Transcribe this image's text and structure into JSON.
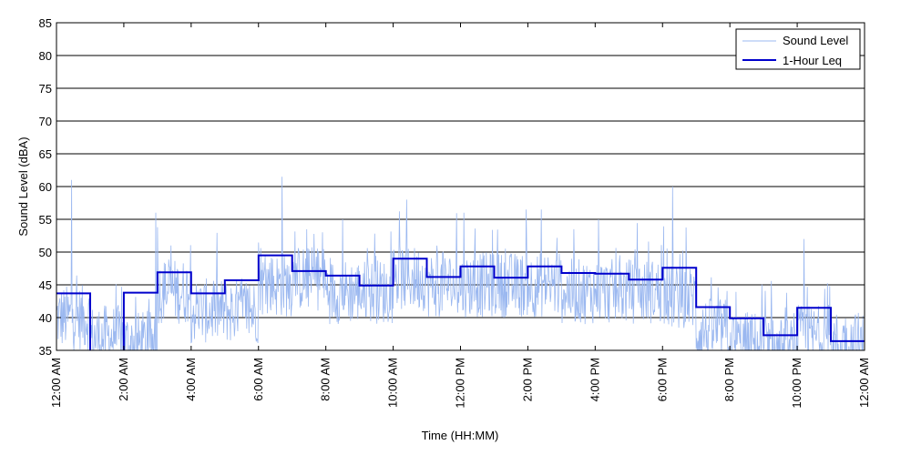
{
  "chart_data": {
    "type": "line",
    "xlabel": "Time (HH:MM)",
    "ylabel": "Sound Level (dBA)",
    "ylim": [
      35,
      85
    ],
    "xlim_hours": [
      0,
      24
    ],
    "y_ticks": [
      35,
      40,
      45,
      50,
      55,
      60,
      65,
      70,
      75,
      80,
      85
    ],
    "x_ticks": [
      {
        "hour": 0,
        "label": "12:00 AM"
      },
      {
        "hour": 2,
        "label": "2:00 AM"
      },
      {
        "hour": 4,
        "label": "4:00 AM"
      },
      {
        "hour": 6,
        "label": "6:00 AM"
      },
      {
        "hour": 8,
        "label": "8:00 AM"
      },
      {
        "hour": 10,
        "label": "10:00 AM"
      },
      {
        "hour": 12,
        "label": "12:00 PM"
      },
      {
        "hour": 14,
        "label": "2:00 PM"
      },
      {
        "hour": 16,
        "label": "4:00 PM"
      },
      {
        "hour": 18,
        "label": "6:00 PM"
      },
      {
        "hour": 20,
        "label": "8:00 PM"
      },
      {
        "hour": 22,
        "label": "10:00 PM"
      },
      {
        "hour": 24,
        "label": "12:00 AM"
      }
    ],
    "grid": "horizontal",
    "legend_position": "top-right",
    "series": [
      {
        "name": "Sound Level",
        "color": "#9bb8f0",
        "style": "thin-line",
        "hourly_means": [
          40,
          37,
          36,
          44,
          41,
          41,
          45,
          46,
          44,
          44,
          46,
          45,
          45,
          45,
          45,
          44,
          44,
          44,
          43,
          38,
          36,
          35,
          37,
          36
        ],
        "peaks": [
          {
            "hour": 0.45,
            "value": 61
          },
          {
            "hour": 2.95,
            "value": 56
          },
          {
            "hour": 3.4,
            "value": 51
          },
          {
            "hour": 6.7,
            "value": 61.5
          },
          {
            "hour": 8.5,
            "value": 55
          },
          {
            "hour": 10.4,
            "value": 58
          },
          {
            "hour": 12.1,
            "value": 56
          },
          {
            "hour": 14.4,
            "value": 56.5
          },
          {
            "hour": 16.1,
            "value": 55
          },
          {
            "hour": 18.3,
            "value": 60
          },
          {
            "hour": 22.2,
            "value": 52
          }
        ]
      },
      {
        "name": "1-Hour Leq",
        "color": "#0000cc",
        "style": "step",
        "values": [
          43.7,
          34.0,
          43.8,
          46.9,
          43.7,
          45.7,
          49.5,
          47.1,
          46.4,
          44.9,
          49.0,
          46.2,
          47.8,
          46.1,
          47.8,
          46.8,
          46.7,
          45.8,
          47.6,
          41.6,
          39.9,
          37.3,
          41.5,
          36.4
        ]
      }
    ]
  }
}
